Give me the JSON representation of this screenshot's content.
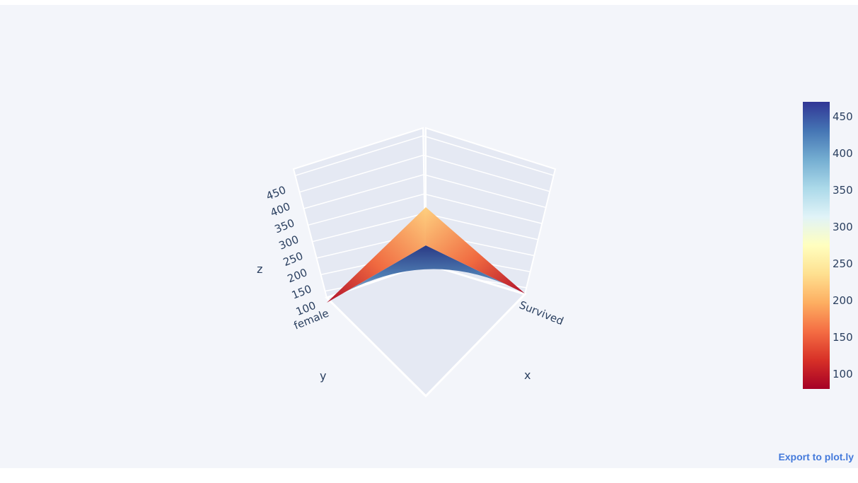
{
  "chart_data": {
    "type": "surface",
    "x_ticks": [
      "Survived"
    ],
    "y_ticks": [
      "female"
    ],
    "z_ticks": [
      100,
      150,
      200,
      250,
      300,
      350,
      400,
      450
    ],
    "xlabel": "x",
    "ylabel": "y",
    "zlabel": "z",
    "zlim": [
      80,
      470
    ],
    "surface": {
      "corner_low_left": 80,
      "corner_low_right": 80,
      "ridge_peak": 470,
      "front_peak": 233
    },
    "colorscale": [
      "#a50026",
      "#d73027",
      "#f46d43",
      "#fdae61",
      "#fee090",
      "#ffffbf",
      "#e0f3f8",
      "#abd9e9",
      "#74add1",
      "#4575b4",
      "#313695"
    ],
    "colorbar": {
      "ticks": [
        100,
        150,
        200,
        250,
        300,
        350,
        400,
        450
      ],
      "range": [
        80,
        470
      ]
    }
  },
  "export_label": "Export to plot.ly"
}
